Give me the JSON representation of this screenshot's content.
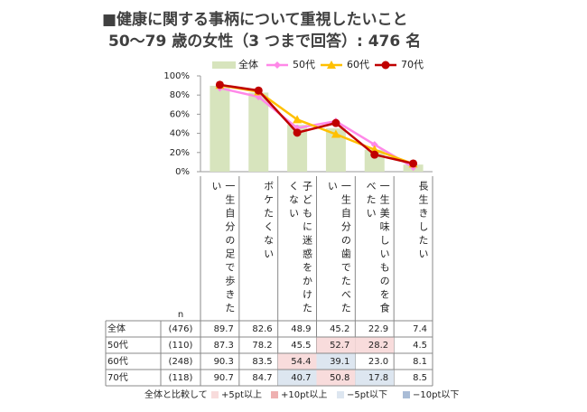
{
  "chart_data": {
    "type": "bar",
    "title": "■健康に関する事柄について重視したいこと",
    "subtitle": "50〜79 歳の女性（3 つまで回答）: 476 名",
    "categories": [
      "一生自分の足で歩きたい",
      "ボケたくない",
      "子どもに迷惑をかけたくない",
      "一生自分の歯でたべたい",
      "一生美味しいものを食べたい",
      "長生きしたい"
    ],
    "series": [
      {
        "name": "全体",
        "type": "bar",
        "color": "#d7e4bd",
        "values": [
          89.7,
          82.6,
          48.9,
          45.2,
          22.9,
          7.4
        ]
      },
      {
        "name": "50代",
        "type": "line",
        "marker": "diamond",
        "color": "#ff88e8",
        "values": [
          87.3,
          78.2,
          45.5,
          52.7,
          28.2,
          4.5
        ]
      },
      {
        "name": "60代",
        "type": "line",
        "marker": "triangle",
        "color": "#ffc000",
        "values": [
          90.3,
          83.5,
          54.4,
          39.1,
          23.0,
          8.1
        ],
        "value_labels": [
          "90.3",
          "83.5",
          "54.4",
          "39.1",
          "23.0",
          "8.1"
        ]
      },
      {
        "name": "70代",
        "type": "line",
        "marker": "circle",
        "color": "#c00000",
        "values": [
          90.7,
          84.7,
          40.7,
          50.8,
          17.8,
          8.5
        ]
      }
    ],
    "ylim": [
      0,
      100
    ],
    "yticks": [
      {
        "value": 0,
        "label": "0%"
      },
      {
        "value": 20,
        "label": "20%"
      },
      {
        "value": 40,
        "label": "40%"
      },
      {
        "value": 60,
        "label": "60%"
      },
      {
        "value": 80,
        "label": "80%"
      },
      {
        "value": 100,
        "label": "100%"
      }
    ],
    "n_header": "n",
    "n_labels": [
      "(476)",
      "(110)",
      "(248)",
      "(118)"
    ],
    "comparison": {
      "title": "全体と比較して",
      "items": [
        {
          "value": 5,
          "label": "+5pt以上",
          "color": "#f8dcdc"
        },
        {
          "value": 10,
          "label": "+10pt以上",
          "color": "#eeb0b0"
        },
        {
          "value": -5,
          "label": "−5pt以下",
          "color": "#dde6f0"
        },
        {
          "value": -10,
          "label": "−10pt以下",
          "color": "#a9bcd6"
        }
      ]
    }
  }
}
